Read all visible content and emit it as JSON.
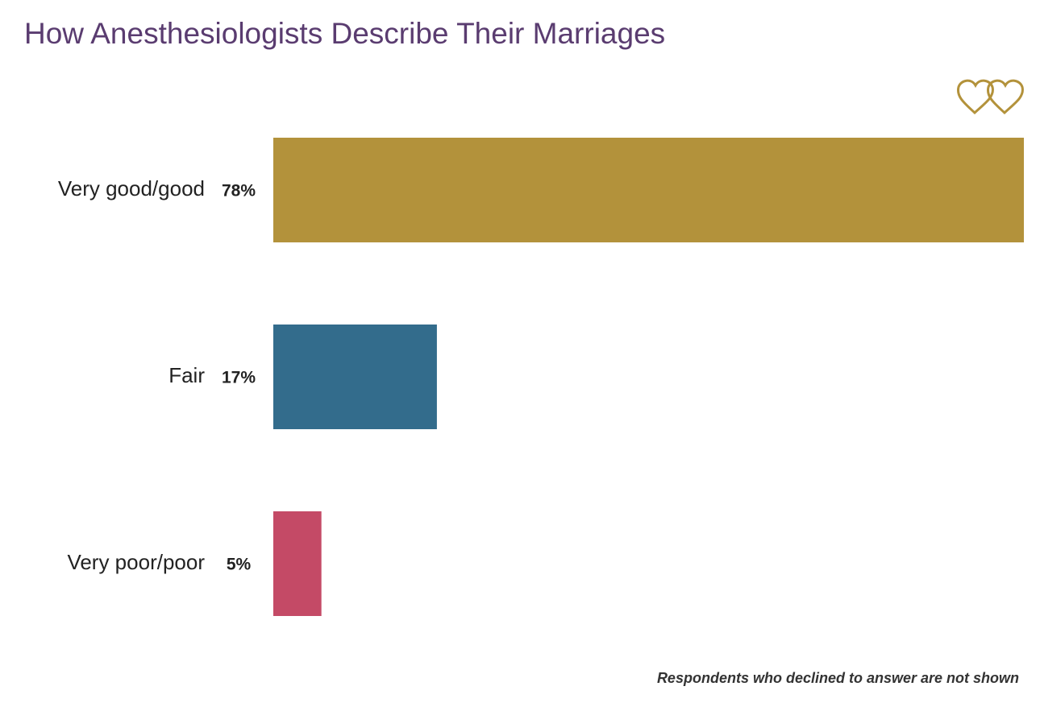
{
  "chart_data": {
    "type": "hbar",
    "title": "How Anesthesiologists Describe Their Marriages",
    "categories": [
      "Very good/good",
      "Fair",
      "Very poor/poor"
    ],
    "values": [
      78,
      17,
      5
    ],
    "value_labels": [
      "78%",
      "17%",
      "5%"
    ],
    "colors": [
      "#b3923b",
      "#336c8c",
      "#c44a66"
    ],
    "xlim": [
      0,
      78
    ],
    "note": "Respondents who declined to answer are not shown"
  }
}
